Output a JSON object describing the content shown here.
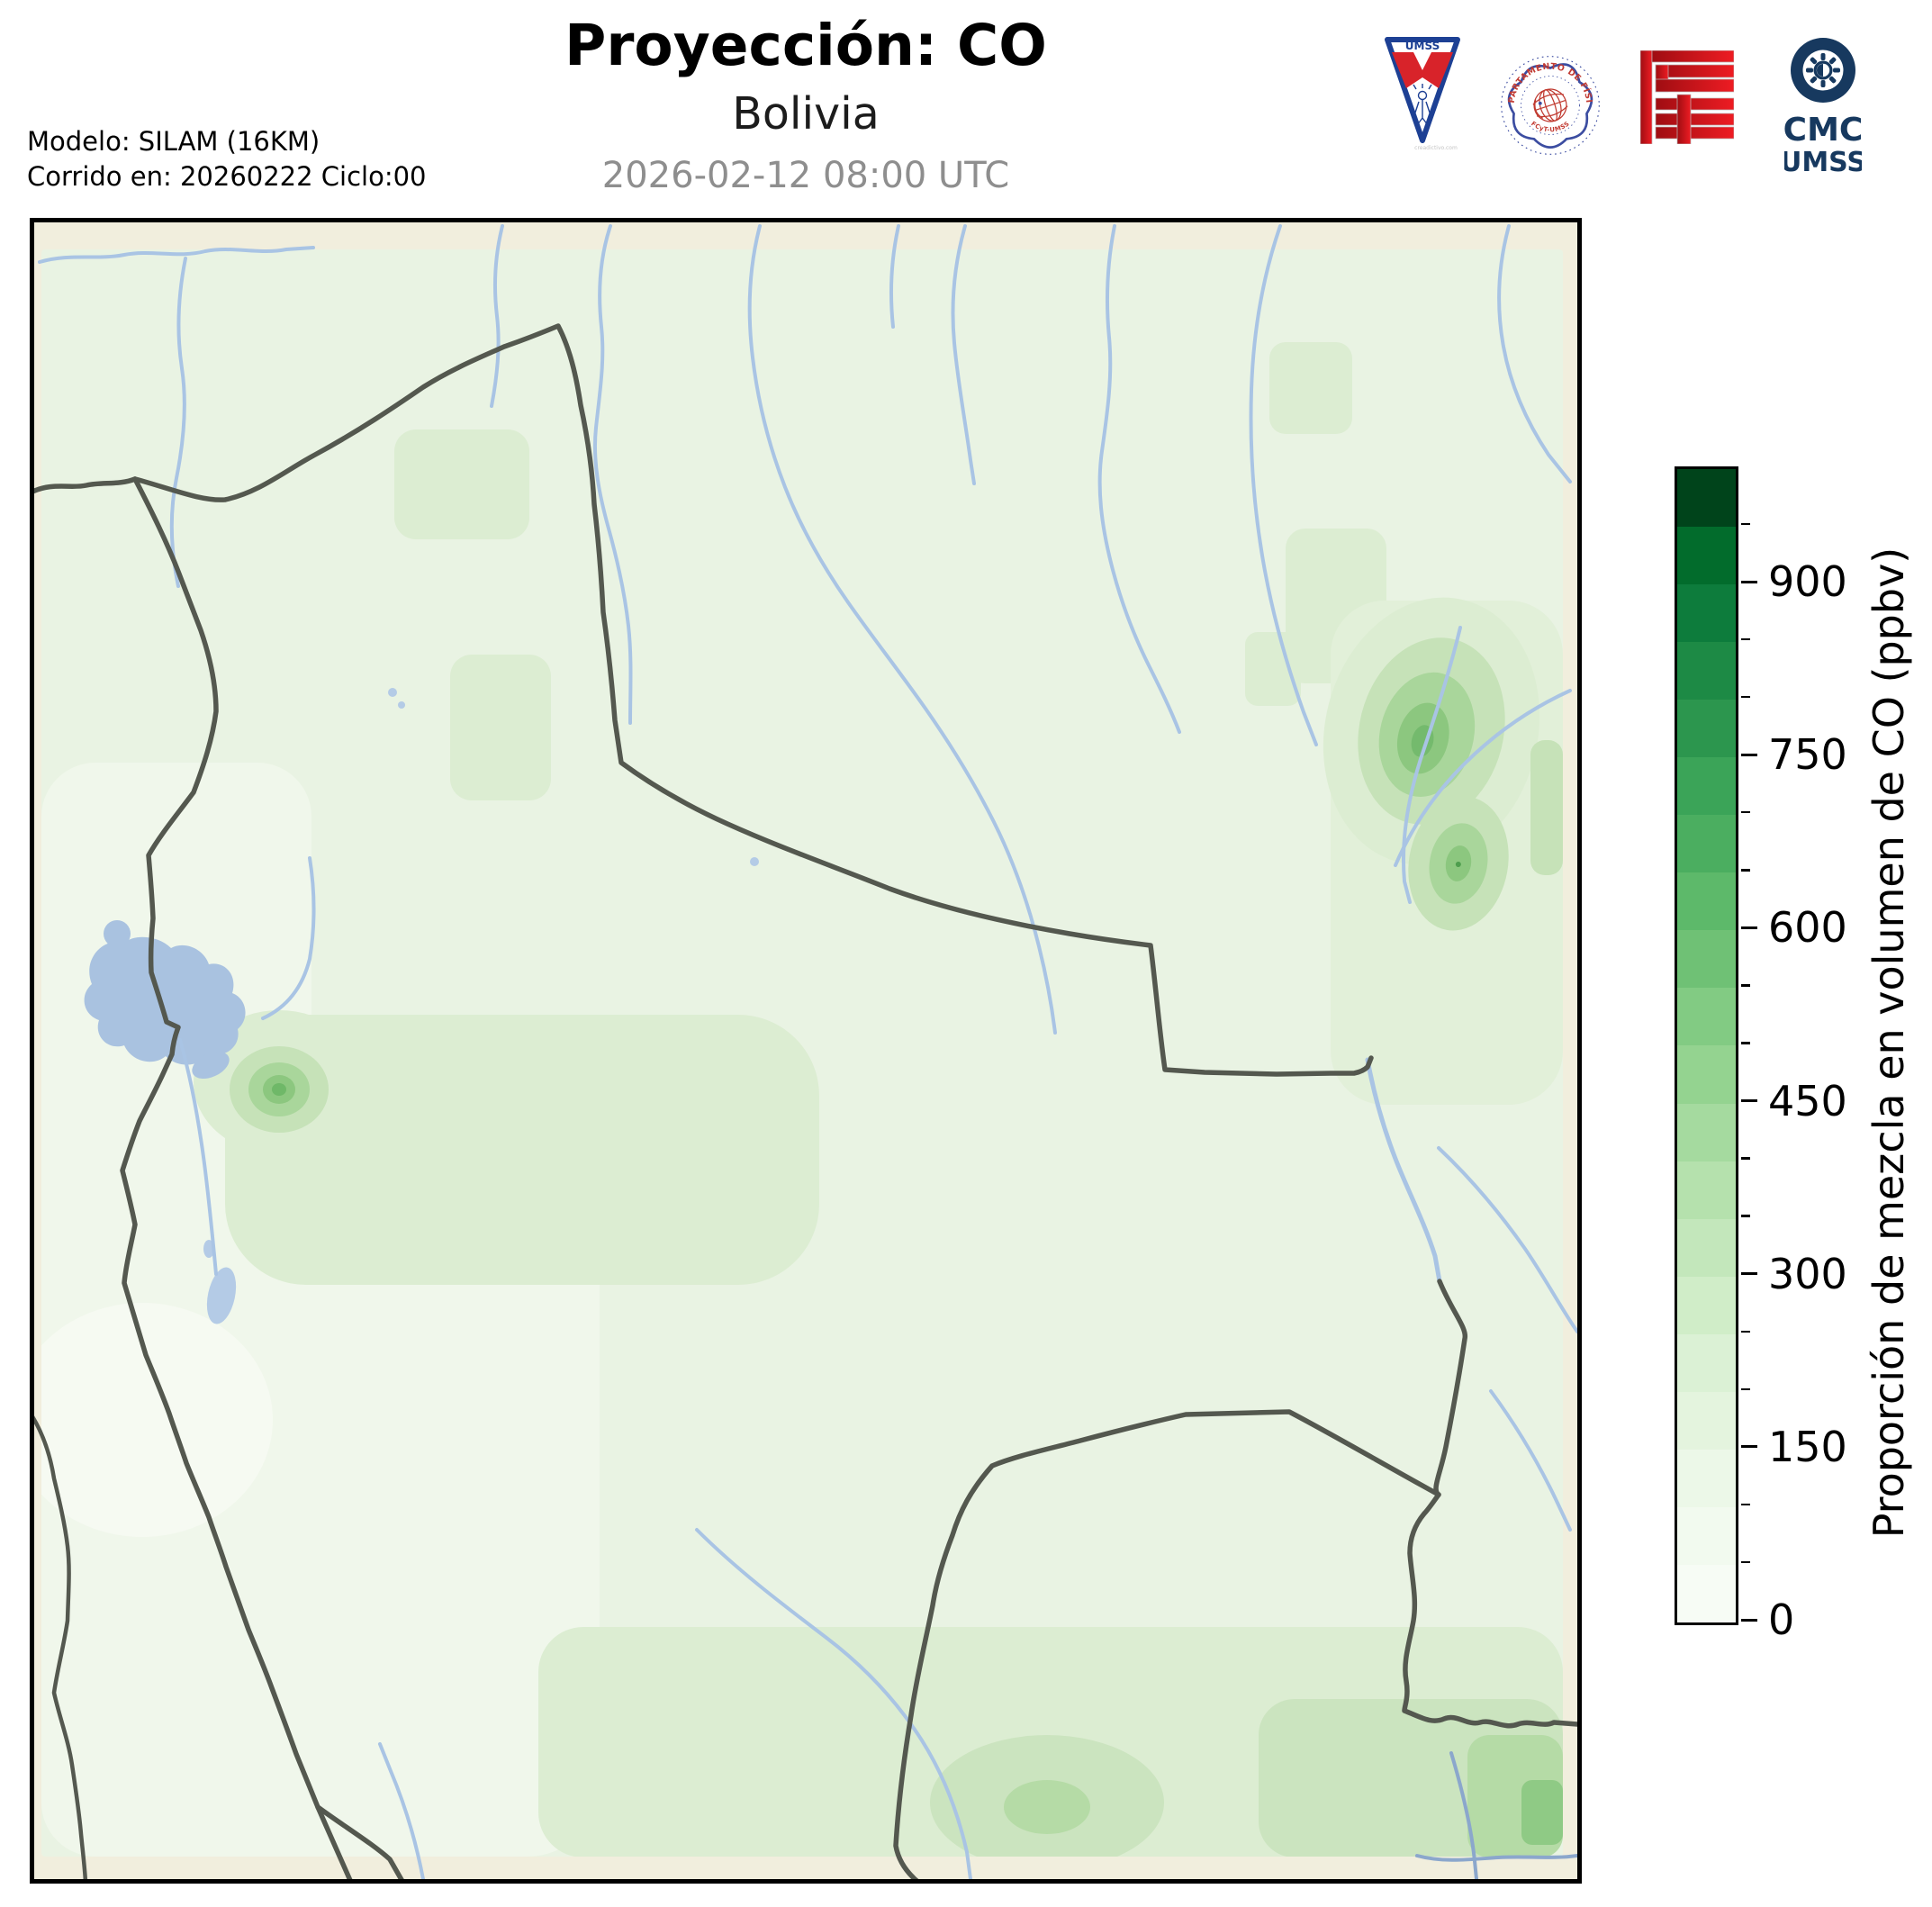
{
  "header": {
    "title": "Proyección: CO",
    "subtitle": "Bolivia",
    "timestamp": "2026-02-12 08:00 UTC",
    "model_line1": "Modelo: SILAM (16KM)",
    "model_line2": "Corrido en: 20260222 Ciclo:00"
  },
  "logos": {
    "umss_pennant_text": "UMSS",
    "umss_watermark": "creadictivo.com",
    "fisica_seal_arc_text": "DEPARTAMENTO DE FÍSICA",
    "fisica_seal_sub_text": "FCyT-UMSS",
    "cmc_line1": "CMC",
    "cmc_line2": "UMSS"
  },
  "colorbar": {
    "label": "Proporción de mezcla en volumen de CO (ppbv)",
    "unit": "ppbv",
    "vmin": 0,
    "vmax": 1000,
    "major_ticks": [
      0,
      150,
      300,
      450,
      600,
      750,
      900
    ],
    "minor_step": 50,
    "colors_bottom_to_top": [
      "#f7fcf5",
      "#f2faef",
      "#ecf8e8",
      "#e4f4de",
      "#dbf1d5",
      "#d0edc8",
      "#c3e7bb",
      "#b5e1ad",
      "#a5da9f",
      "#94d390",
      "#82cb83",
      "#6fc175",
      "#5db96a",
      "#4bae60",
      "#3ba458",
      "#2c964e",
      "#1d8a45",
      "#0d7c3c",
      "#026c2c",
      "#00441b"
    ]
  },
  "map": {
    "colors": {
      "background_margin": "#f1eedd",
      "base_field": "#e9f3e3",
      "light_field": "#f0f7eb",
      "salar_field": "#f6faf2",
      "mid_field": "#dcedd2",
      "mid2_field": "#cbe4bf",
      "hotspot_1": "#c6e2b8",
      "hotspot_2": "#a9d69b",
      "hotspot_3": "#8cc77f",
      "hotspot_core": "#6fb868",
      "river": "#a9c4e4",
      "river_dark": "#8ba7cc",
      "lake": "#a9c2e0",
      "border_line": "#54584f",
      "frame": "#000000"
    }
  }
}
